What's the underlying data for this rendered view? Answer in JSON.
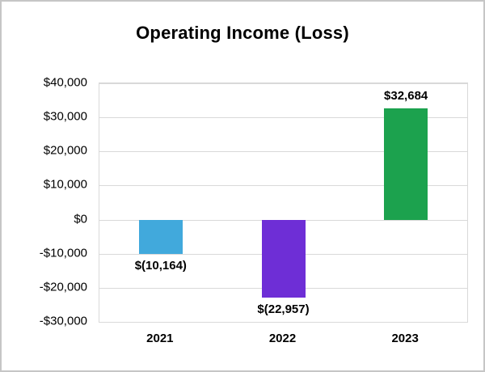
{
  "chart_data": {
    "type": "bar",
    "title": "Operating Income (Loss)",
    "categories": [
      "2021",
      "2022",
      "2023"
    ],
    "values": [
      -10164,
      -22957,
      32684
    ],
    "data_labels": [
      "$(10,164)",
      "$(22,957)",
      "$32,684"
    ],
    "bar_colors": [
      "#41A9DC",
      "#6E2ED6",
      "#1CA24E"
    ],
    "ylim": [
      -30000,
      40000
    ],
    "ytick_step": 10000,
    "y_ticks": [
      {
        "value": 40000,
        "label": "$40,000"
      },
      {
        "value": 30000,
        "label": "$30,000"
      },
      {
        "value": 20000,
        "label": "$20,000"
      },
      {
        "value": 10000,
        "label": "$10,000"
      },
      {
        "value": 0,
        "label": "$0"
      },
      {
        "value": -10000,
        "label": "-$10,000"
      },
      {
        "value": -20000,
        "label": "-$20,000"
      },
      {
        "value": -30000,
        "label": "-$30,000"
      }
    ],
    "grid": true,
    "legend": "none",
    "frame_color": "#C6C6C6",
    "gridline_color": "#D9D9D9",
    "text_color": "#000000"
  }
}
